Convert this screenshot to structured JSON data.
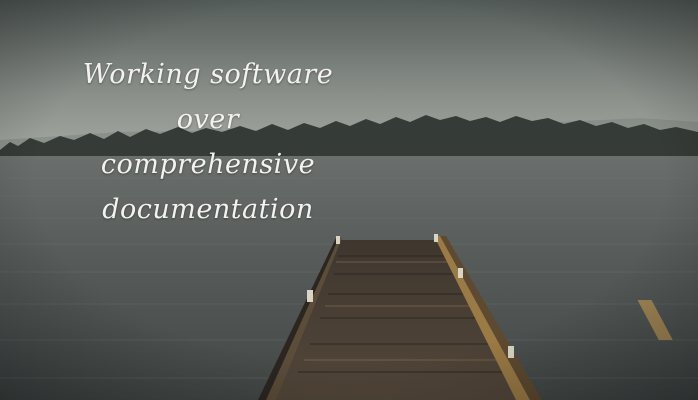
{
  "quote": {
    "line1": "Working software",
    "line2": "over",
    "line3": "comprehensive",
    "line4": "documentation"
  },
  "colors": {
    "sky_top": "#5c6460",
    "sky_bottom": "#a4a8a2",
    "water": "#4f5453",
    "treeline": "#3a3f3a",
    "pier_deck": "#4a3d30",
    "pier_edge": "#8a6a3a"
  }
}
